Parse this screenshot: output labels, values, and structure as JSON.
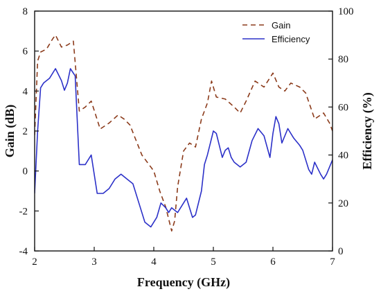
{
  "chart_data": {
    "type": "line",
    "xlabel": "Frequency (GHz)",
    "ylabel_left": "Gain (dB)",
    "ylabel_right": "Efficiency (%)",
    "xlim": [
      2,
      7
    ],
    "ylim_left": [
      -4,
      8
    ],
    "ylim_right": [
      0,
      100
    ],
    "x_ticks": [
      2,
      3,
      4,
      5,
      6,
      7
    ],
    "y_left_ticks": [
      -4,
      -2,
      0,
      2,
      4,
      6,
      8
    ],
    "y_right_ticks": [
      0,
      20,
      40,
      60,
      80,
      100
    ],
    "grid": false,
    "legend_position": "top-right",
    "series": [
      {
        "name": "Gain",
        "axis": "left",
        "style": "dashed",
        "color": "#8B3A1A",
        "x": [
          2.0,
          2.05,
          2.1,
          2.2,
          2.3,
          2.35,
          2.45,
          2.55,
          2.65,
          2.75,
          2.85,
          2.95,
          3.1,
          3.25,
          3.4,
          3.5,
          3.6,
          3.8,
          4.0,
          4.1,
          4.2,
          4.3,
          4.35,
          4.4,
          4.5,
          4.6,
          4.7,
          4.8,
          4.9,
          4.97,
          5.05,
          5.2,
          5.35,
          5.45,
          5.55,
          5.7,
          5.85,
          6.0,
          6.1,
          6.2,
          6.3,
          6.45,
          6.55,
          6.7,
          6.85,
          6.95,
          7.0
        ],
        "values": [
          1.8,
          5.5,
          5.95,
          6.1,
          6.6,
          6.8,
          6.2,
          6.3,
          6.5,
          3.0,
          3.2,
          3.5,
          2.1,
          2.4,
          2.8,
          2.6,
          2.3,
          0.8,
          0.0,
          -1.0,
          -1.8,
          -3.0,
          -2.5,
          -0.8,
          1.0,
          1.4,
          1.2,
          2.6,
          3.4,
          4.5,
          3.7,
          3.6,
          3.2,
          2.9,
          3.5,
          4.5,
          4.2,
          4.9,
          4.2,
          4.0,
          4.4,
          4.2,
          3.9,
          2.6,
          2.9,
          2.4,
          2.0
        ]
      },
      {
        "name": "Efficiency",
        "axis": "right",
        "style": "solid",
        "color": "#2B30C8",
        "x": [
          2.0,
          2.05,
          2.1,
          2.15,
          2.25,
          2.35,
          2.45,
          2.5,
          2.55,
          2.6,
          2.68,
          2.75,
          2.85,
          2.95,
          3.05,
          3.15,
          3.25,
          3.35,
          3.45,
          3.55,
          3.65,
          3.75,
          3.85,
          3.95,
          4.05,
          4.12,
          4.2,
          4.25,
          4.3,
          4.4,
          4.5,
          4.55,
          4.65,
          4.7,
          4.8,
          4.85,
          4.9,
          4.95,
          5.0,
          5.05,
          5.1,
          5.15,
          5.2,
          5.25,
          5.3,
          5.35,
          5.45,
          5.55,
          5.65,
          5.75,
          5.85,
          5.95,
          6.0,
          6.05,
          6.1,
          6.15,
          6.25,
          6.35,
          6.45,
          6.5,
          6.6,
          6.65,
          6.7,
          6.8,
          6.85,
          6.9,
          6.95,
          7.0
        ],
        "values": [
          24,
          50,
          68,
          70,
          72,
          76,
          71,
          67,
          70,
          76,
          73,
          36,
          36,
          40,
          24,
          24,
          26,
          30,
          32,
          30,
          28,
          20,
          12,
          10,
          14,
          20,
          18,
          16,
          18,
          16,
          20,
          22,
          14,
          15,
          25,
          36,
          40,
          45,
          50,
          49,
          44,
          39,
          42,
          43,
          39,
          37,
          35,
          37,
          46,
          51,
          48,
          39,
          49,
          56,
          53,
          45,
          51,
          47,
          44,
          42,
          34,
          32,
          37,
          32,
          30,
          32,
          35,
          38
        ]
      }
    ]
  }
}
